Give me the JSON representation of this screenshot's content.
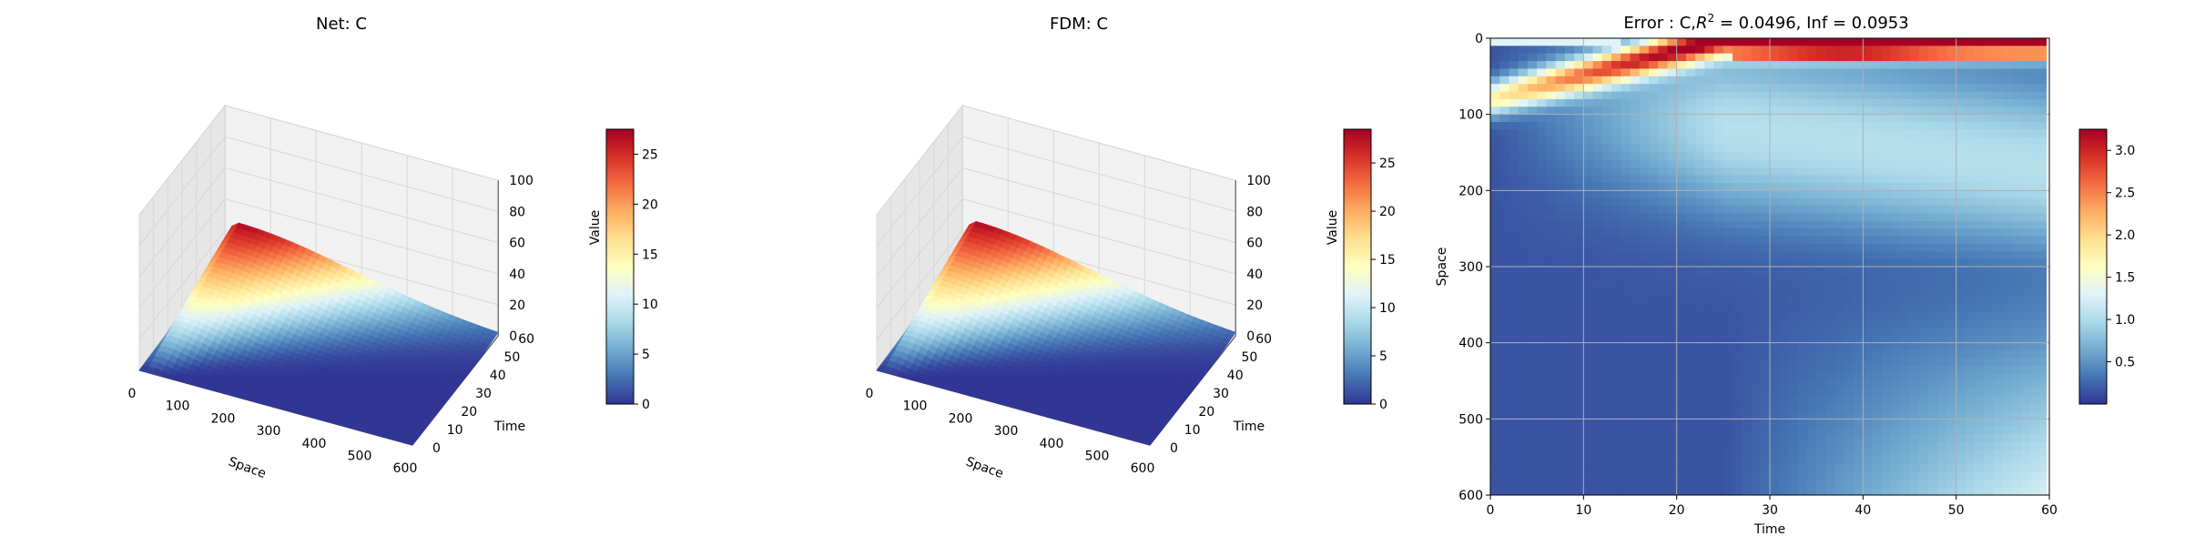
{
  "figure": {
    "width": 2400,
    "height": 600
  },
  "chart_data": [
    {
      "type": "surface3d",
      "title": "Net: C",
      "xlabel": "Space",
      "ylabel": "Time",
      "zlabel": "Value",
      "xlim": [
        0,
        600
      ],
      "ylim": [
        0,
        60
      ],
      "zlim": [
        0,
        100
      ],
      "xticks": [
        "0",
        "100",
        "200",
        "300",
        "400",
        "500",
        "600"
      ],
      "yticks": [
        "0",
        "10",
        "20",
        "30",
        "40",
        "50",
        "60"
      ],
      "zticks": [
        "0",
        "20",
        "40",
        "60",
        "80",
        "100"
      ],
      "colormap": "RdYlBu_r",
      "colorbar": {
        "min": 0,
        "max": 27.5,
        "ticks": [
          "0",
          "5",
          "10",
          "15",
          "20",
          "25"
        ]
      },
      "peak_value": 27,
      "peak_location": {
        "space": 20,
        "time": 60
      }
    },
    {
      "type": "surface3d",
      "title": "FDM: C",
      "xlabel": "Space",
      "ylabel": "Time",
      "zlabel": "Value",
      "xlim": [
        0,
        600
      ],
      "ylim": [
        0,
        60
      ],
      "zlim": [
        0,
        100
      ],
      "xticks": [
        "0",
        "100",
        "200",
        "300",
        "400",
        "500",
        "600"
      ],
      "yticks": [
        "0",
        "10",
        "20",
        "30",
        "40",
        "50",
        "60"
      ],
      "zticks": [
        "0",
        "20",
        "40",
        "60",
        "80",
        "100"
      ],
      "colormap": "RdYlBu_r",
      "colorbar": {
        "min": 0,
        "max": 28.5,
        "ticks": [
          "0",
          "5",
          "10",
          "15",
          "20",
          "25"
        ]
      },
      "peak_value": 28,
      "peak_location": {
        "space": 20,
        "time": 60
      }
    },
    {
      "type": "heatmap",
      "title_prefix": "Error : C,",
      "title_r": "R",
      "title_sup": "2",
      "title_suffix": " = 0.0496, Inf = 0.0953",
      "xlabel": "Time",
      "ylabel": "Space",
      "xlim": [
        0,
        60
      ],
      "ylim": [
        600,
        0
      ],
      "xticks": [
        "0",
        "10",
        "20",
        "30",
        "40",
        "50",
        "60"
      ],
      "yticks": [
        "0",
        "100",
        "200",
        "300",
        "400",
        "500",
        "600"
      ],
      "grid": true,
      "colormap": "RdYlBu_r",
      "colorbar": {
        "min": 0.0,
        "max": 3.25,
        "ticks": [
          "0.5",
          "1.0",
          "1.5",
          "2.0",
          "2.5",
          "3.0"
        ]
      }
    }
  ]
}
